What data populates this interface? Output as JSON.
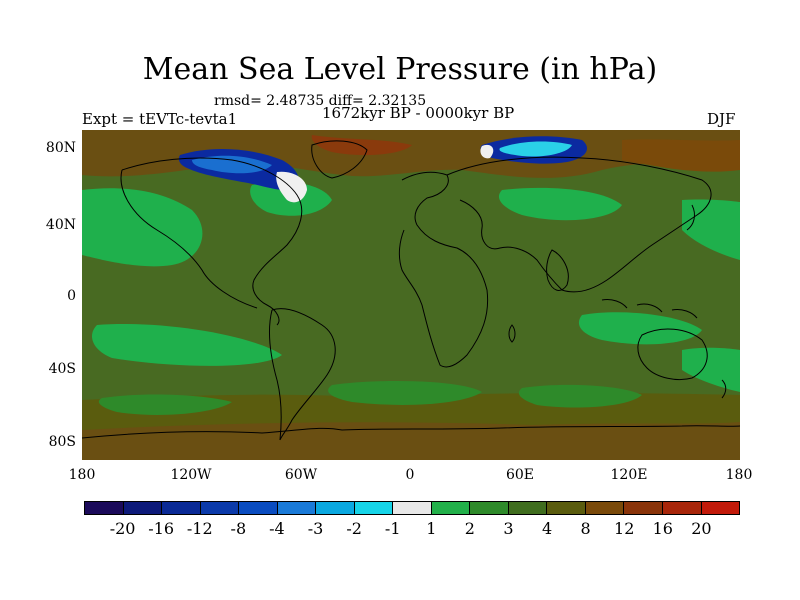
{
  "title": "Mean Sea Level Pressure (in hPa)",
  "stats_text": "rmsd= 2.48735 diff= 2.32135",
  "left_label": "Expt = tEVTc-tevta1",
  "center_label": "1672kyr BP - 0000kyr BP",
  "right_label": "DJF",
  "y_ticks": [
    "80N",
    "40N",
    "0",
    "40S",
    "80S"
  ],
  "x_ticks": [
    "180",
    "120W",
    "60W",
    "0",
    "60E",
    "120E",
    "180"
  ],
  "colorbar": {
    "labels": [
      "-20",
      "-16",
      "-12",
      "-8",
      "-4",
      "-3",
      "-2",
      "-1",
      "1",
      "2",
      "3",
      "4",
      "8",
      "12",
      "16",
      "20"
    ],
    "colors": [
      "#1b0a5a",
      "#0d1a7a",
      "#0a2a96",
      "#0b3aaa",
      "#0a4cc0",
      "#1a7ad8",
      "#0aa8e0",
      "#16d4e8",
      "#e8e8e8",
      "#22b04a",
      "#2e8a2a",
      "#3f6d1e",
      "#5a5c0e",
      "#7a4a0a",
      "#8a340a",
      "#a8260a",
      "#c21a0a"
    ]
  },
  "colors": {
    "base": "#486a22",
    "light_green": "#1fb04c",
    "mid_green": "#2e8a2a",
    "brown": "#6a4f12",
    "dark_brown": "#8a3a0c",
    "deep_blue": "#0b2aa0",
    "blue": "#1a6fd0",
    "cyan": "#2ad0e8",
    "white": "#f0f0f0"
  }
}
